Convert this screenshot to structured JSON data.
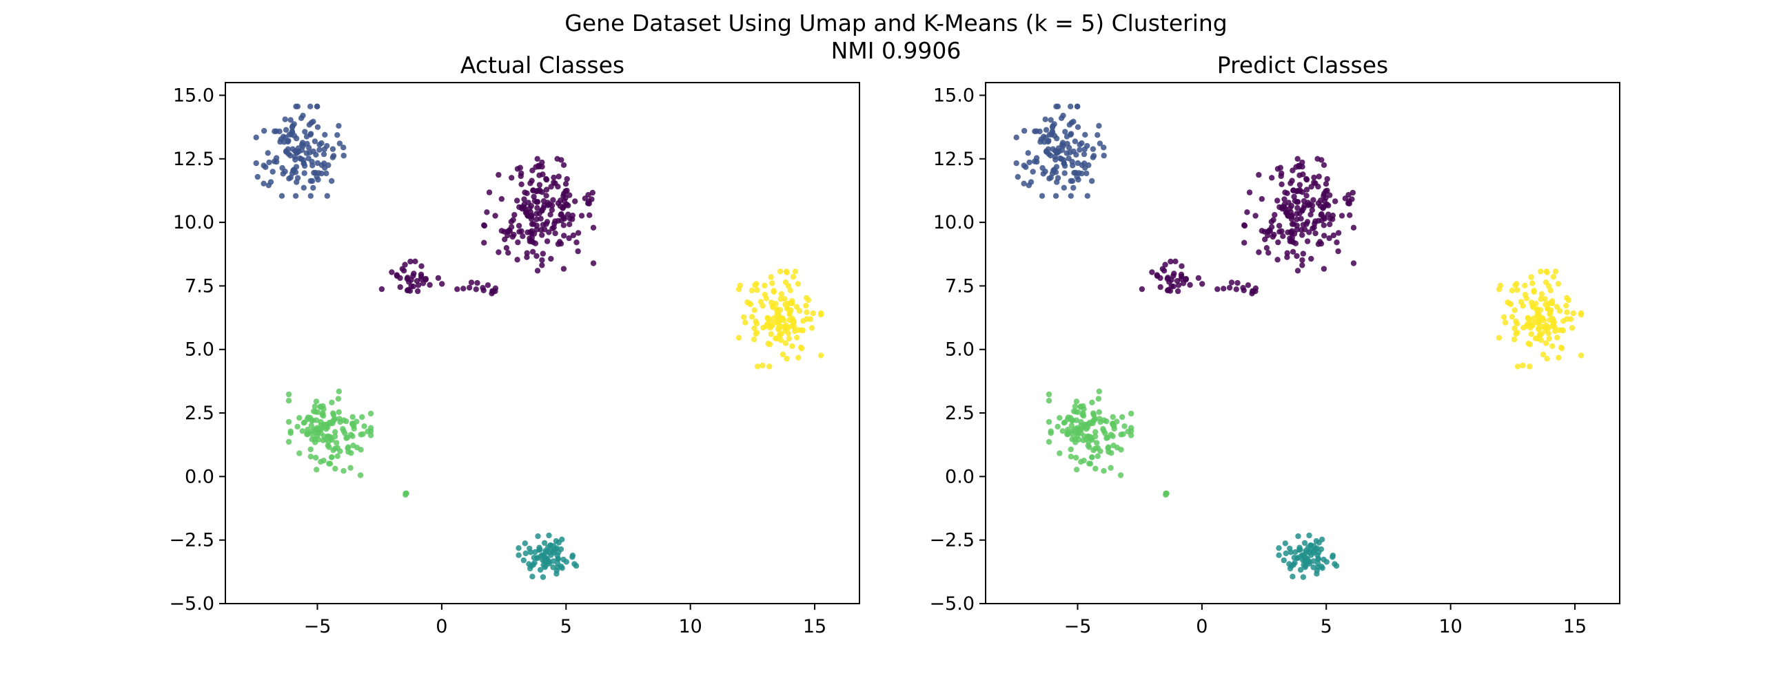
{
  "figure": {
    "title_line1": "Gene Dataset Using Umap and K-Means (k = 5) Clustering",
    "title_line2": "NMI 0.9906"
  },
  "chart_data": [
    {
      "type": "scatter",
      "title": "Actual Classes",
      "xlabel": "",
      "ylabel": "",
      "xlim": [
        -8.7,
        16.8
      ],
      "ylim": [
        -5.0,
        15.5
      ],
      "xticks": [
        -5,
        0,
        5,
        10,
        15
      ],
      "yticks": [
        -5.0,
        -2.5,
        0.0,
        2.5,
        5.0,
        7.5,
        10.0,
        12.5,
        15.0
      ],
      "grid": false,
      "legend": "none",
      "clusters": [
        {
          "class": 0,
          "color": "#440154",
          "cx": 3.9,
          "cy": 10.3,
          "sx": 1.0,
          "sy": 1.0,
          "n": 200
        },
        {
          "class": 0,
          "color": "#440154",
          "cx": -1.2,
          "cy": 7.8,
          "sx": 0.55,
          "sy": 0.35,
          "n": 35
        },
        {
          "class": 0,
          "color": "#440154",
          "cx": 1.5,
          "cy": 7.4,
          "sx": 0.4,
          "sy": 0.13,
          "n": 14
        },
        {
          "class": 1,
          "color": "#3b528b",
          "cx": -5.7,
          "cy": 12.8,
          "sx": 0.8,
          "sy": 0.8,
          "n": 135
        },
        {
          "class": 2,
          "color": "#21918c",
          "cx": 4.2,
          "cy": -3.2,
          "sx": 0.55,
          "sy": 0.4,
          "n": 75
        },
        {
          "class": 3,
          "color": "#5ec962",
          "cx": -4.5,
          "cy": 1.7,
          "sx": 0.75,
          "sy": 0.75,
          "n": 140
        },
        {
          "class": 3,
          "color": "#5ec962",
          "cx": -1.5,
          "cy": -0.55,
          "sx": 0.1,
          "sy": 0.1,
          "n": 4
        },
        {
          "class": 4,
          "color": "#fde725",
          "cx": 13.6,
          "cy": 6.2,
          "sx": 0.75,
          "sy": 0.85,
          "n": 135
        }
      ]
    },
    {
      "type": "scatter",
      "title": "Predict Classes",
      "xlabel": "",
      "ylabel": "",
      "xlim": [
        -8.7,
        16.8
      ],
      "ylim": [
        -5.0,
        15.5
      ],
      "xticks": [
        -5,
        0,
        5,
        10,
        15
      ],
      "yticks": [
        -5.0,
        -2.5,
        0.0,
        2.5,
        5.0,
        7.5,
        10.0,
        12.5,
        15.0
      ],
      "grid": false,
      "legend": "none",
      "clusters": [
        {
          "class": 0,
          "color": "#440154",
          "cx": 3.9,
          "cy": 10.3,
          "sx": 1.0,
          "sy": 1.0,
          "n": 200
        },
        {
          "class": 0,
          "color": "#440154",
          "cx": -1.2,
          "cy": 7.8,
          "sx": 0.55,
          "sy": 0.35,
          "n": 35
        },
        {
          "class": 0,
          "color": "#440154",
          "cx": 1.5,
          "cy": 7.4,
          "sx": 0.4,
          "sy": 0.13,
          "n": 14
        },
        {
          "class": 1,
          "color": "#3b528b",
          "cx": -5.7,
          "cy": 12.8,
          "sx": 0.8,
          "sy": 0.8,
          "n": 135
        },
        {
          "class": 2,
          "color": "#21918c",
          "cx": 4.2,
          "cy": -3.2,
          "sx": 0.55,
          "sy": 0.4,
          "n": 75
        },
        {
          "class": 3,
          "color": "#5ec962",
          "cx": -4.5,
          "cy": 1.7,
          "sx": 0.75,
          "sy": 0.75,
          "n": 140
        },
        {
          "class": 3,
          "color": "#5ec962",
          "cx": -1.5,
          "cy": -0.55,
          "sx": 0.1,
          "sy": 0.1,
          "n": 4
        },
        {
          "class": 4,
          "color": "#fde725",
          "cx": 13.6,
          "cy": 6.2,
          "sx": 0.75,
          "sy": 0.85,
          "n": 135
        }
      ]
    }
  ]
}
